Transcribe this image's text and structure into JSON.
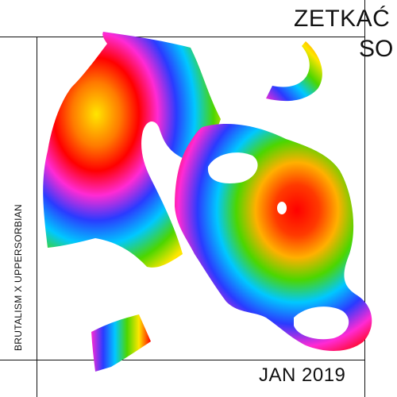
{
  "poster": {
    "title_line1": "ZETKAĆ",
    "title_line2": "SO",
    "side_text": "BRUTALISM X UPPERSORBIAN",
    "date": "JAN 2019"
  },
  "colors": {
    "background": "#ffffff",
    "lines": "#111111",
    "spectrum": [
      "#ff0000",
      "#ff7a00",
      "#ffe600",
      "#4cd600",
      "#00c8ff",
      "#2a3bff",
      "#7a1fd6",
      "#ff2ad4"
    ]
  },
  "artwork": {
    "name": "rainbow-gradient-blob-shapes"
  }
}
